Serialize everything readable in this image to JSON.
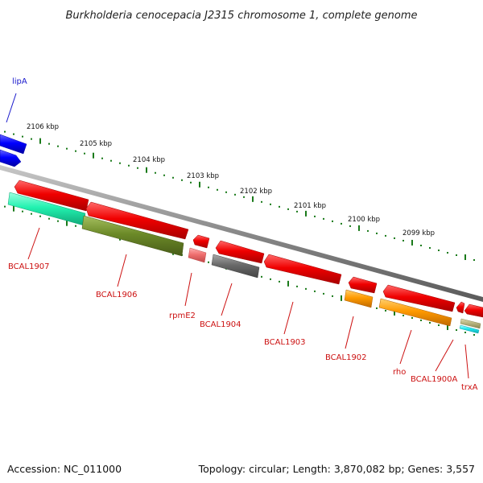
{
  "title": "Burkholderia cenocepacia J2315 chromosome 1, complete genome",
  "footer": {
    "accession": "Accession: NC_011000",
    "summary": "Topology: circular; Length: 3,870,082 bp; Genes: 3,557"
  },
  "ticks": [
    "2106 kbp",
    "2105 kbp",
    "2104 kbp",
    "2103 kbp",
    "2102 kbp",
    "2101 kbp",
    "2100 kbp",
    "2099 kbp"
  ],
  "genes": [
    "lipA",
    "BCAL1907",
    "BCAL1906",
    "rpmE2",
    "BCAL1904",
    "BCAL1903",
    "BCAL1902",
    "rho",
    "BCAL1900A",
    "trxA"
  ],
  "colors": {
    "forward_cds": "#0a1aff",
    "reverse_cds": "#ff1a1a",
    "backbone": "#888888",
    "tick": "#1a7a1a",
    "label_forward": "#1a1acc",
    "label_reverse": "#cc1111"
  }
}
